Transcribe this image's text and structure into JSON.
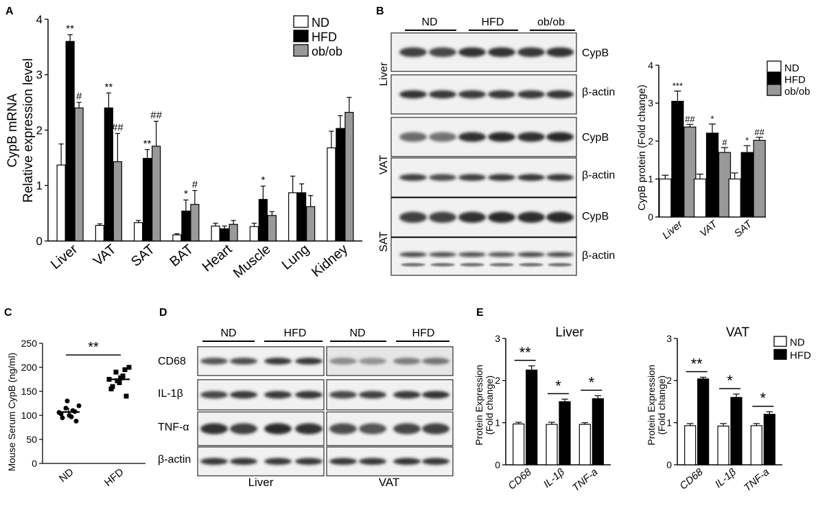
{
  "panels": {
    "A": "A",
    "B": "B",
    "C": "C",
    "D": "D",
    "E": "E"
  },
  "chart_data": [
    {
      "id": "A",
      "type": "bar",
      "ylabel_line1": "CypB mRNA",
      "ylabel_line2": "Relative expression level",
      "ylim": [
        0,
        4
      ],
      "yticks": [
        "0",
        "1",
        "2",
        "3",
        "4"
      ],
      "categories": [
        "Liver",
        "VAT",
        "SAT",
        "BAT",
        "Heart",
        "Muscle",
        "Lung",
        "Kidney"
      ],
      "series": [
        {
          "name": "ND",
          "color": "#ffffff",
          "values": [
            1.37,
            0.28,
            0.33,
            0.11,
            0.27,
            0.26,
            0.87,
            1.68
          ],
          "err": [
            0.38,
            0.03,
            0.04,
            0.02,
            0.05,
            0.06,
            0.3,
            0.3
          ]
        },
        {
          "name": "HFD",
          "color": "#000000",
          "values": [
            3.6,
            2.4,
            1.49,
            0.54,
            0.22,
            0.75,
            0.87,
            2.03
          ],
          "err": [
            0.12,
            0.27,
            0.16,
            0.2,
            0.05,
            0.24,
            0.16,
            0.23
          ]
        },
        {
          "name": "ob/ob",
          "color": "#999999",
          "values": [
            2.4,
            1.43,
            1.71,
            0.66,
            0.3,
            0.46,
            0.62,
            2.32
          ],
          "err": [
            0.1,
            0.51,
            0.45,
            0.25,
            0.07,
            0.07,
            0.2,
            0.27
          ]
        }
      ],
      "annotations": [
        {
          "category": 0,
          "series": 1,
          "text": "**"
        },
        {
          "category": 0,
          "series": 2,
          "text": "#"
        },
        {
          "category": 1,
          "series": 1,
          "text": "**"
        },
        {
          "category": 1,
          "series": 2,
          "text": "##"
        },
        {
          "category": 2,
          "series": 1,
          "text": "**"
        },
        {
          "category": 2,
          "series": 2,
          "text": "##"
        },
        {
          "category": 3,
          "series": 1,
          "text": "*"
        },
        {
          "category": 3,
          "series": 2,
          "text": "#"
        },
        {
          "category": 5,
          "series": 1,
          "text": "*"
        }
      ]
    },
    {
      "id": "B-chart",
      "type": "bar",
      "ylabel": "CypB protein (Fold change)",
      "ylim": [
        0,
        4
      ],
      "yticks": [
        "0",
        "1",
        "2",
        "3",
        "4"
      ],
      "categories": [
        "Liver",
        "VAT",
        "SAT"
      ],
      "series": [
        {
          "name": "ND",
          "color": "#ffffff",
          "values": [
            1.0,
            1.0,
            1.0
          ],
          "err": [
            0.1,
            0.13,
            0.16
          ]
        },
        {
          "name": "HFD",
          "color": "#000000",
          "values": [
            3.05,
            2.21,
            1.7
          ],
          "err": [
            0.27,
            0.24,
            0.18
          ]
        },
        {
          "name": "ob/ob",
          "color": "#999999",
          "values": [
            2.37,
            1.7,
            2.02
          ],
          "err": [
            0.07,
            0.13,
            0.08
          ]
        }
      ],
      "annotations": [
        {
          "category": 0,
          "series": 1,
          "text": "***"
        },
        {
          "category": 0,
          "series": 2,
          "text": "##"
        },
        {
          "category": 1,
          "series": 1,
          "text": "*"
        },
        {
          "category": 1,
          "series": 2,
          "text": "#"
        },
        {
          "category": 2,
          "series": 1,
          "text": "*"
        },
        {
          "category": 2,
          "series": 2,
          "text": "##"
        }
      ]
    },
    {
      "id": "C",
      "type": "scatter",
      "ylabel": "Mouse Serum CypB (ng/ml)",
      "ylim": [
        0,
        250
      ],
      "yticks": [
        "0",
        "50",
        "100",
        "150",
        "200",
        "250"
      ],
      "categories": [
        "ND",
        "HFD"
      ],
      "series": [
        {
          "name": "ND",
          "values": [
            106,
            95,
            115,
            100,
            110,
            88,
            120,
            103,
            130,
            97,
            108
          ]
        },
        {
          "name": "HFD",
          "values": [
            175,
            160,
            190,
            168,
            182,
            140,
            200,
            155,
            172,
            178,
            195
          ]
        }
      ],
      "means": [
        107,
        175
      ],
      "significance": "**"
    },
    {
      "id": "E-liver",
      "type": "bar",
      "title": "Liver",
      "ylabel_line1": "Protein Expression",
      "ylabel_line2": "(Fold change)",
      "ylim": [
        0,
        3
      ],
      "yticks": [
        "0",
        "1",
        "2",
        "3"
      ],
      "categories": [
        "CD68",
        "IL-1β",
        "TNF-a"
      ],
      "series": [
        {
          "name": "ND",
          "color": "#ffffff",
          "values": [
            0.97,
            0.96,
            0.96
          ],
          "err": [
            0.04,
            0.05,
            0.04
          ]
        },
        {
          "name": "HFD",
          "color": "#000000",
          "values": [
            2.25,
            1.5,
            1.57
          ],
          "err": [
            0.1,
            0.06,
            0.07
          ]
        }
      ],
      "significance": [
        "**",
        "*",
        "*"
      ]
    },
    {
      "id": "E-vat",
      "type": "bar",
      "title": "VAT",
      "ylabel_line1": "Protein Expression",
      "ylabel_line2": "(Fold change)",
      "ylim": [
        0,
        3
      ],
      "yticks": [
        "0",
        "1",
        "2",
        "3"
      ],
      "categories": [
        "CD68",
        "IL-1β",
        "TNF-a"
      ],
      "series": [
        {
          "name": "ND",
          "color": "#ffffff",
          "values": [
            0.93,
            0.92,
            0.93
          ],
          "err": [
            0.05,
            0.06,
            0.05
          ]
        },
        {
          "name": "HFD",
          "color": "#000000",
          "values": [
            2.04,
            1.6,
            1.2
          ],
          "err": [
            0.04,
            0.08,
            0.06
          ]
        }
      ],
      "significance": [
        "**",
        "*",
        "*"
      ]
    }
  ],
  "blotB": {
    "groups": [
      "ND",
      "HFD",
      "ob/ob"
    ],
    "tissues": [
      "Liver",
      "VAT",
      "SAT"
    ],
    "rows": [
      "CypB",
      "β-actin",
      "CypB",
      "β-actin",
      "CypB",
      "β-actin"
    ]
  },
  "blotD": {
    "groups_liver": [
      "ND",
      "HFD"
    ],
    "groups_vat": [
      "ND",
      "HFD"
    ],
    "rows": [
      "CD68",
      "IL-1β",
      "TNF-α",
      "β-actin"
    ],
    "tissues": [
      "Liver",
      "VAT"
    ]
  }
}
